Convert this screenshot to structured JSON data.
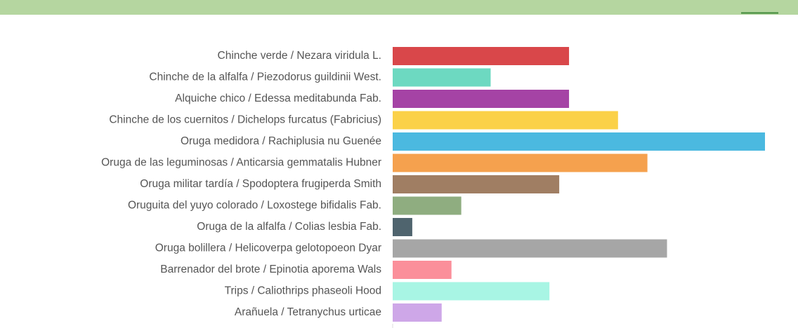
{
  "chart_data": {
    "type": "bar",
    "orientation": "horizontal",
    "categories": [
      "Chinche verde / Nezara viridula L.",
      "Chinche de la alfalfa / Piezodorus guildinii West.",
      "Alquiche chico / Edessa meditabunda Fab.",
      "Chinche de los cuernitos / Dichelops furcatus (Fabricius)",
      "Oruga medidora / Rachiplusia nu Guenée",
      "Oruga de las leguminosas / Anticarsia gemmatalis Hubner",
      "Oruga militar tardía / Spodoptera frugiperda Smith",
      "Oruguita del yuyo colorado / Loxostege bifidalis Fab.",
      "Oruga de la alfalfa / Colias lesbia Fab.",
      "Oruga bolillera / Helicoverpa gelotopoeon Dyar",
      "Barrenador del brote / Epinotia aporema Wals",
      "Trips / Caliothrips phaseoli Hood",
      "Arañuela / Tetranychus urticae"
    ],
    "values": [
      18,
      10,
      18,
      23,
      38,
      26,
      17,
      7,
      2,
      28,
      6,
      16,
      5
    ],
    "colors": [
      "#d9474a",
      "#6dd9c1",
      "#a543a5",
      "#fbd148",
      "#4bb9e0",
      "#f5a14e",
      "#a07e63",
      "#8fad80",
      "#4f646e",
      "#a6a6a6",
      "#fb8f9a",
      "#a8f5e4",
      "#cea7e8"
    ],
    "xlim": [
      0,
      38
    ]
  }
}
